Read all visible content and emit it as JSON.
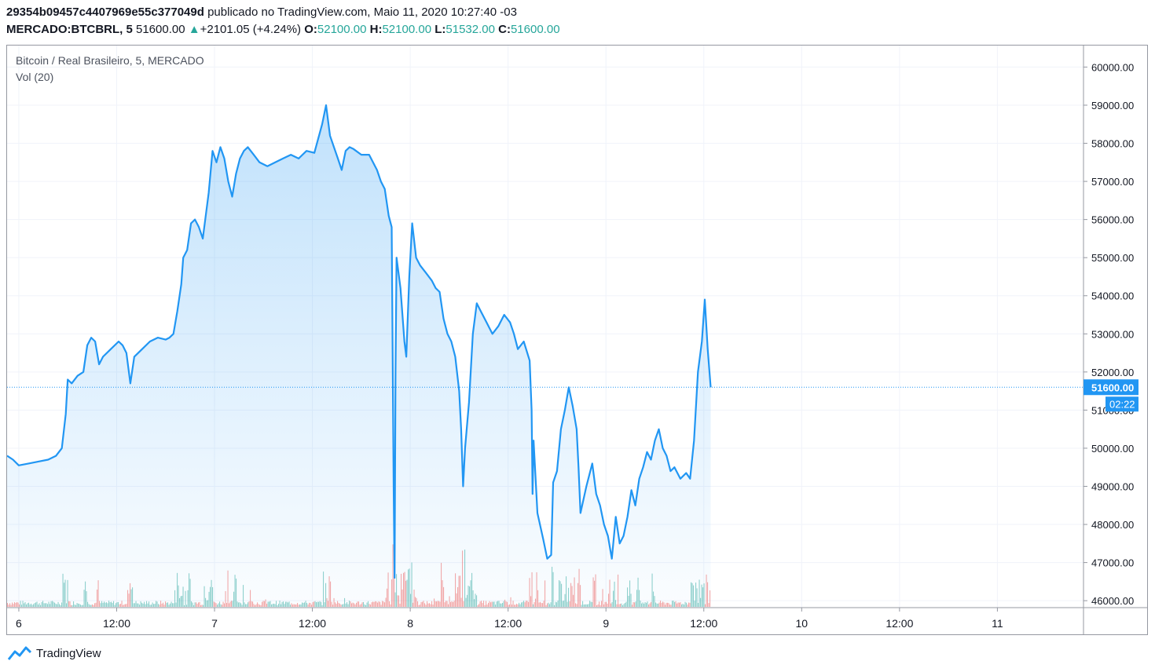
{
  "header": {
    "publisher_id": "29354b09457c4407969e55c377049d",
    "published_text": "publicado no TradingView.com, Maio 11, 2020 10:27:40 -03",
    "symbol": "MERCADO:BTCBRL, 5",
    "last": "51600.00",
    "change_arrow": "▲",
    "change": "+2101.05 (+4.24%)",
    "o_label": "O:",
    "o_value": "52100.00",
    "h_label": "H:",
    "h_value": "52100.00",
    "l_label": "L:",
    "l_value": "51532.00",
    "c_label": "C:",
    "c_value": "51600.00"
  },
  "legend": {
    "title": "Bitcoin / Real Brasileiro, 5, MERCADO",
    "volume": "Vol (20)"
  },
  "price_tag": {
    "value": "51600.00",
    "countdown": "02:22"
  },
  "footer": {
    "brand": "TradingView"
  },
  "colors": {
    "line": "#2196f3",
    "up_volume": "#26a69a",
    "down_volume": "#ef5350",
    "grid": "#f0f3fa",
    "axis_text": "#131722"
  },
  "chart_data": {
    "type": "area",
    "title": "Bitcoin / Real Brasileiro, 5, MERCADO",
    "xlabel": "",
    "ylabel": "",
    "ylim": [
      45900,
      60400
    ],
    "y_ticks": [
      46000,
      47000,
      48000,
      49000,
      50000,
      51000,
      52000,
      53000,
      54000,
      55000,
      56000,
      57000,
      58000,
      59000,
      60000
    ],
    "x_ticks": [
      {
        "label": "6",
        "t": 0.75
      },
      {
        "label": "12:00",
        "t": 1.25
      },
      {
        "label": "7",
        "t": 1.75
      },
      {
        "label": "12:00",
        "t": 2.25
      },
      {
        "label": "8",
        "t": 2.75
      },
      {
        "label": "12:00",
        "t": 3.25
      },
      {
        "label": "9",
        "t": 3.75
      },
      {
        "label": "12:00",
        "t": 4.25
      },
      {
        "label": "10",
        "t": 4.75
      },
      {
        "label": "12:00",
        "t": 5.25
      },
      {
        "label": "11",
        "t": 5.75
      }
    ],
    "x_domain": [
      0.69,
      6.19
    ],
    "grid": true,
    "last_price": 51600,
    "series": [
      {
        "name": "BTCBRL",
        "points": [
          [
            0.69,
            49800
          ],
          [
            0.72,
            49700
          ],
          [
            0.75,
            49550
          ],
          [
            0.8,
            49600
          ],
          [
            0.85,
            49650
          ],
          [
            0.9,
            49700
          ],
          [
            0.94,
            49800
          ],
          [
            0.97,
            50000
          ],
          [
            0.99,
            50900
          ],
          [
            1.0,
            51800
          ],
          [
            1.02,
            51700
          ],
          [
            1.05,
            51900
          ],
          [
            1.08,
            52000
          ],
          [
            1.1,
            52700
          ],
          [
            1.12,
            52900
          ],
          [
            1.14,
            52800
          ],
          [
            1.16,
            52200
          ],
          [
            1.18,
            52400
          ],
          [
            1.22,
            52600
          ],
          [
            1.26,
            52800
          ],
          [
            1.28,
            52700
          ],
          [
            1.3,
            52500
          ],
          [
            1.32,
            51700
          ],
          [
            1.34,
            52400
          ],
          [
            1.38,
            52600
          ],
          [
            1.42,
            52800
          ],
          [
            1.46,
            52900
          ],
          [
            1.5,
            52850
          ],
          [
            1.52,
            52900
          ],
          [
            1.54,
            53000
          ],
          [
            1.56,
            53600
          ],
          [
            1.58,
            54300
          ],
          [
            1.59,
            55000
          ],
          [
            1.61,
            55200
          ],
          [
            1.63,
            55900
          ],
          [
            1.65,
            56000
          ],
          [
            1.67,
            55800
          ],
          [
            1.69,
            55500
          ],
          [
            1.72,
            56700
          ],
          [
            1.74,
            57800
          ],
          [
            1.76,
            57500
          ],
          [
            1.78,
            57900
          ],
          [
            1.8,
            57600
          ],
          [
            1.82,
            57000
          ],
          [
            1.84,
            56600
          ],
          [
            1.86,
            57200
          ],
          [
            1.88,
            57600
          ],
          [
            1.9,
            57800
          ],
          [
            1.92,
            57900
          ],
          [
            1.95,
            57700
          ],
          [
            1.98,
            57500
          ],
          [
            2.02,
            57400
          ],
          [
            2.06,
            57500
          ],
          [
            2.1,
            57600
          ],
          [
            2.14,
            57700
          ],
          [
            2.18,
            57600
          ],
          [
            2.22,
            57800
          ],
          [
            2.26,
            57750
          ],
          [
            2.3,
            58500
          ],
          [
            2.32,
            59000
          ],
          [
            2.34,
            58200
          ],
          [
            2.36,
            57900
          ],
          [
            2.38,
            57600
          ],
          [
            2.4,
            57300
          ],
          [
            2.42,
            57800
          ],
          [
            2.44,
            57900
          ],
          [
            2.46,
            57850
          ],
          [
            2.5,
            57700
          ],
          [
            2.54,
            57700
          ],
          [
            2.58,
            57300
          ],
          [
            2.6,
            57000
          ],
          [
            2.62,
            56800
          ],
          [
            2.64,
            56100
          ],
          [
            2.655,
            55800
          ],
          [
            2.665,
            49000
          ],
          [
            2.67,
            46600
          ],
          [
            2.675,
            52000
          ],
          [
            2.68,
            55000
          ],
          [
            2.7,
            54200
          ],
          [
            2.72,
            52800
          ],
          [
            2.73,
            52400
          ],
          [
            2.745,
            54500
          ],
          [
            2.76,
            55900
          ],
          [
            2.78,
            55000
          ],
          [
            2.8,
            54800
          ],
          [
            2.83,
            54600
          ],
          [
            2.86,
            54400
          ],
          [
            2.88,
            54200
          ],
          [
            2.9,
            54100
          ],
          [
            2.92,
            53400
          ],
          [
            2.94,
            53000
          ],
          [
            2.96,
            52800
          ],
          [
            2.98,
            52400
          ],
          [
            3.0,
            51500
          ],
          [
            3.01,
            50500
          ],
          [
            3.02,
            49000
          ],
          [
            3.03,
            50000
          ],
          [
            3.05,
            51200
          ],
          [
            3.07,
            53000
          ],
          [
            3.09,
            53800
          ],
          [
            3.11,
            53600
          ],
          [
            3.14,
            53300
          ],
          [
            3.17,
            53000
          ],
          [
            3.2,
            53200
          ],
          [
            3.23,
            53500
          ],
          [
            3.26,
            53300
          ],
          [
            3.28,
            53000
          ],
          [
            3.3,
            52600
          ],
          [
            3.33,
            52800
          ],
          [
            3.36,
            52300
          ],
          [
            3.37,
            51000
          ],
          [
            3.375,
            48800
          ],
          [
            3.38,
            50200
          ],
          [
            3.4,
            48300
          ],
          [
            3.43,
            47600
          ],
          [
            3.45,
            47100
          ],
          [
            3.47,
            47200
          ],
          [
            3.48,
            49100
          ],
          [
            3.5,
            49400
          ],
          [
            3.52,
            50500
          ],
          [
            3.54,
            51000
          ],
          [
            3.56,
            51600
          ],
          [
            3.58,
            51100
          ],
          [
            3.6,
            50500
          ],
          [
            3.61,
            49500
          ],
          [
            3.62,
            48300
          ],
          [
            3.65,
            49000
          ],
          [
            3.68,
            49600
          ],
          [
            3.7,
            48800
          ],
          [
            3.72,
            48500
          ],
          [
            3.74,
            48000
          ],
          [
            3.76,
            47700
          ],
          [
            3.78,
            47100
          ],
          [
            3.8,
            48200
          ],
          [
            3.82,
            47500
          ],
          [
            3.84,
            47700
          ],
          [
            3.86,
            48200
          ],
          [
            3.88,
            48900
          ],
          [
            3.9,
            48500
          ],
          [
            3.92,
            49200
          ],
          [
            3.94,
            49500
          ],
          [
            3.96,
            49900
          ],
          [
            3.98,
            49700
          ],
          [
            4.0,
            50200
          ],
          [
            4.02,
            50500
          ],
          [
            4.04,
            50000
          ],
          [
            4.06,
            49800
          ],
          [
            4.08,
            49400
          ],
          [
            4.1,
            49500
          ],
          [
            4.13,
            49200
          ],
          [
            4.16,
            49350
          ],
          [
            4.18,
            49200
          ],
          [
            4.2,
            50200
          ],
          [
            4.22,
            52000
          ],
          [
            4.24,
            52800
          ],
          [
            4.255,
            53900
          ],
          [
            4.27,
            52600
          ],
          [
            4.285,
            51600
          ]
        ]
      }
    ],
    "volume_series": {
      "name": "Vol (20)",
      "note_ylim": [
        0,
        100
      ]
    }
  }
}
